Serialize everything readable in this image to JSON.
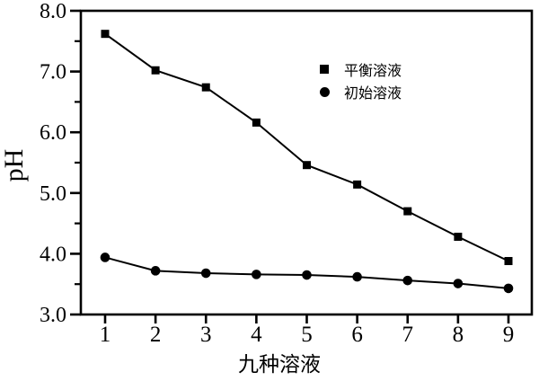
{
  "figure": {
    "background": "#ffffff",
    "ink_color": "#000000"
  },
  "chart_data": {
    "type": "line",
    "x": [
      1,
      2,
      3,
      4,
      5,
      6,
      7,
      8,
      9
    ],
    "series": [
      {
        "name": "平衡溶液",
        "marker": "square",
        "color": "#000000",
        "values": [
          7.62,
          7.02,
          6.74,
          6.16,
          5.46,
          5.14,
          4.7,
          4.28,
          3.88
        ]
      },
      {
        "name": "初始溶液",
        "marker": "circle",
        "color": "#000000",
        "values": [
          3.94,
          3.72,
          3.68,
          3.66,
          3.65,
          3.62,
          3.56,
          3.51,
          3.43
        ]
      }
    ],
    "title": "",
    "xlabel": "九种溶液",
    "ylabel": "pH",
    "ylim": [
      3.0,
      8.0
    ],
    "yticks": [
      3.0,
      4.0,
      5.0,
      6.0,
      7.0,
      8.0
    ],
    "ytick_labels": [
      "3.0",
      "4.0",
      "5.0",
      "6.0",
      "7.0",
      "8.0"
    ],
    "y_minor_ticks": [
      3.5,
      4.5,
      5.5,
      6.5,
      7.5
    ],
    "xticks": [
      1,
      2,
      3,
      4,
      5,
      6,
      7,
      8,
      9
    ],
    "xtick_labels": [
      "1",
      "2",
      "3",
      "4",
      "5",
      "6",
      "7",
      "8",
      "9"
    ],
    "grid": false,
    "legend": {
      "position": "inside-upper-middle",
      "entries": [
        "平衡溶液",
        "初始溶液"
      ]
    }
  }
}
